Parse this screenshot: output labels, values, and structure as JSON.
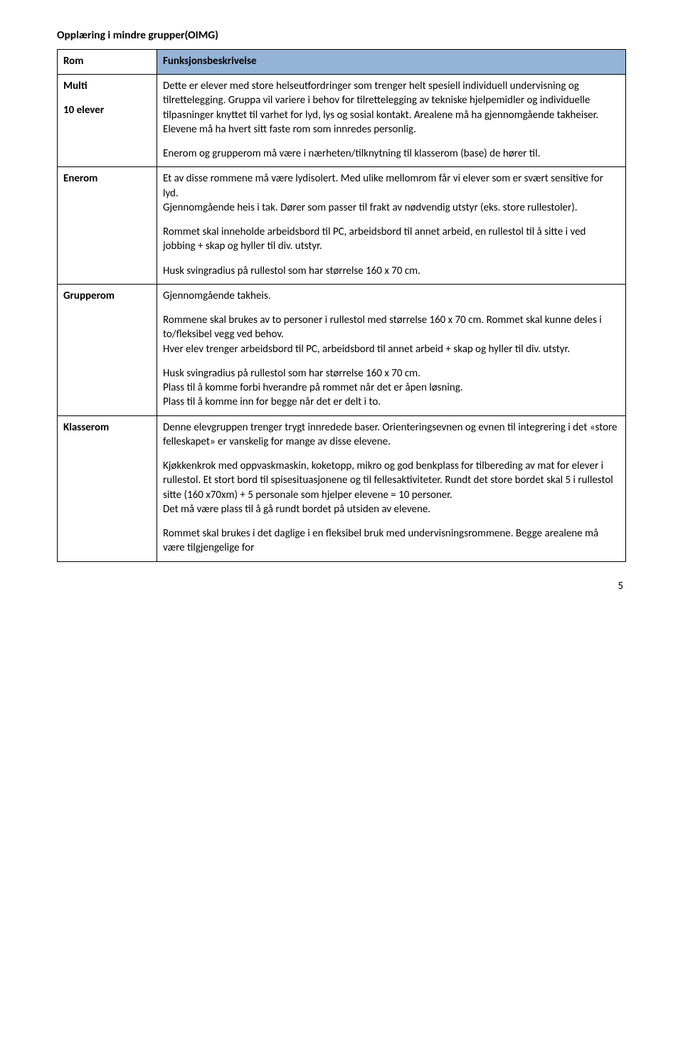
{
  "section_title": "Opplæring i mindre grupper(OIMG)",
  "header": {
    "left": "Rom",
    "right": "Funksjonsbeskrivelse"
  },
  "colors": {
    "header_bg": "#94b3d6",
    "border": "#000000",
    "text": "#000000",
    "background": "#ffffff"
  },
  "page_number": "5",
  "rows": [
    {
      "label_line1": "Multi",
      "label_line2": "10 elever",
      "paras": [
        "Dette er elever med store helseutfordringer som trenger helt spesiell individuell undervisning og tilrettelegging. Gruppa vil variere i behov for tilrettelegging av tekniske hjelpemidler og individuelle tilpasninger knyttet til varhet for lyd, lys og sosial kontakt. Arealene må ha gjennomgående takheiser. Elevene må ha hvert sitt faste rom som innredes personlig.",
        "Enerom og grupperom må være i nærheten/tilknytning til klasserom (base) de hører til."
      ]
    },
    {
      "label_line1": "Enerom",
      "label_line2": "",
      "paras": [
        "Et av disse rommene må være lydisolert. Med ulike mellomrom får vi elever som er svært sensitive for lyd.\nGjennomgående heis i tak. Dører som passer til frakt av nødvendig utstyr (eks. store rullestoler).",
        "Rommet skal inneholde arbeidsbord til PC, arbeidsbord til annet arbeid, en rullestol til å sitte i ved jobbing + skap og hyller til div. utstyr.",
        "Husk svingradius på rullestol som har størrelse 160 x 70 cm."
      ]
    },
    {
      "label_line1": "Grupperom",
      "label_line2": "",
      "paras": [
        "Gjennomgående takheis.",
        "Rommene skal brukes av to personer i rullestol med størrelse 160 x 70 cm. Rommet skal kunne deles i to/fleksibel vegg ved behov.\nHver elev trenger arbeidsbord til PC, arbeidsbord til annet arbeid + skap og hyller til div. utstyr.",
        "Husk svingradius på rullestol som har størrelse 160 x 70 cm.\nPlass til å komme forbi hverandre på rommet når det er åpen løsning.\nPlass til å komme inn for begge når det er delt i to."
      ]
    },
    {
      "label_line1": "Klasserom",
      "label_line2": "",
      "paras": [
        "Denne elevgruppen trenger trygt innredede baser. Orienteringsevnen og evnen til integrering i det «store felleskapet» er vanskelig for mange av disse elevene.",
        "Kjøkkenkrok med oppvaskmaskin, koketopp, mikro og god benkplass for tilbereding av mat for elever i rullestol. Et stort bord til spisesituasjonene og til fellesaktiviteter. Rundt det store bordet skal 5 i rullestol sitte (160 x70xm) + 5 personale som hjelper elevene = 10 personer.\nDet må være plass til å gå rundt bordet på utsiden av elevene.",
        "Rommet skal brukes i det daglige i en fleksibel bruk med undervisningsrommene. Begge arealene må være tilgjengelige for"
      ]
    }
  ]
}
